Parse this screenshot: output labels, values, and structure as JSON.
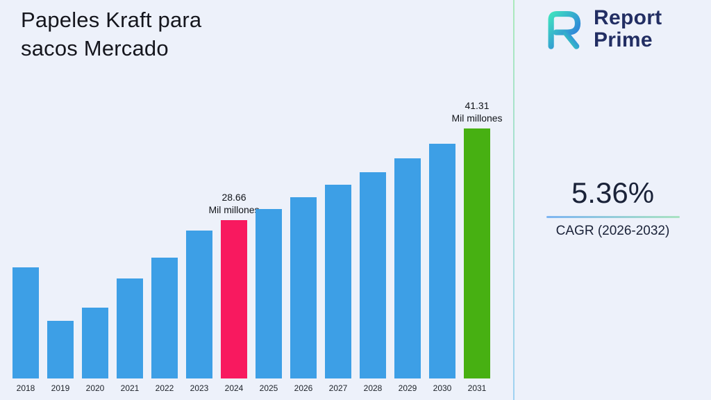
{
  "title": {
    "line1": "Papeles Kraft para",
    "line2": "sacos Mercado"
  },
  "brand": {
    "line1": "Report",
    "line2": "Prime"
  },
  "stats": {
    "value": "5.36%",
    "label": "CAGR (2026-2032)"
  },
  "colors": {
    "background": "#edf1fa",
    "bar_blue": "#3d9fe6",
    "bar_pink": "#f8195f",
    "bar_green": "#47b012",
    "brand_navy": "#222e63"
  },
  "chart_data": {
    "type": "bar",
    "title": "Papeles Kraft para sacos Mercado",
    "unit": "Mil millones",
    "categories": [
      "2018",
      "2019",
      "2020",
      "2021",
      "2022",
      "2023",
      "2024",
      "2025",
      "2026",
      "2027",
      "2028",
      "2029",
      "2030",
      "2031"
    ],
    "values": [
      22.1,
      14.8,
      16.6,
      20.6,
      23.5,
      27.2,
      28.66,
      30.2,
      31.8,
      33.5,
      35.3,
      37.2,
      39.2,
      41.31
    ],
    "ylim": [
      6.8,
      41.31
    ],
    "grid": false,
    "legend": "none",
    "bar_default_color": "#3d9fe6",
    "highlight_colors": {
      "2024": "#f8195f",
      "2031": "#47b012"
    },
    "annotations": [
      {
        "category": "2024",
        "value_label": "28.66",
        "unit_label": "Mil millones"
      },
      {
        "category": "2031",
        "value_label": "41.31",
        "unit_label": "Mil millones"
      }
    ]
  }
}
